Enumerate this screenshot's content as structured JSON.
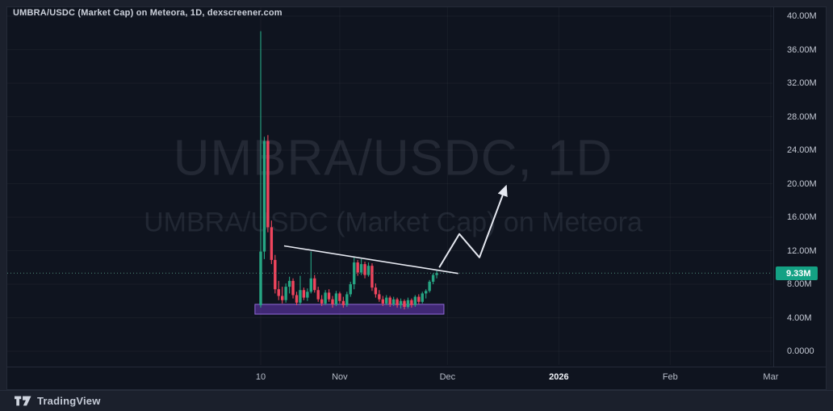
{
  "header": {
    "title": "UMBRA/USDC (Market Cap) on Meteora, 1D, dexscreener.com"
  },
  "watermark": {
    "line1": "UMBRA/USDC, 1D",
    "line2": "UMBRA/USDC (Market Cap) on Meteora"
  },
  "footer": {
    "brand": "TradingView"
  },
  "price_scale": {
    "last_price_label": "9.33M",
    "ticks": [
      {
        "label": "40.00M",
        "value": 40
      },
      {
        "label": "36.00M",
        "value": 36
      },
      {
        "label": "32.00M",
        "value": 32
      },
      {
        "label": "28.00M",
        "value": 28
      },
      {
        "label": "24.00M",
        "value": 24
      },
      {
        "label": "20.00M",
        "value": 20
      },
      {
        "label": "16.00M",
        "value": 16
      },
      {
        "label": "12.00M",
        "value": 12
      },
      {
        "label": "8.00M",
        "value": 8
      },
      {
        "label": "4.00M",
        "value": 4
      },
      {
        "label": "0.0000",
        "value": 0
      }
    ]
  },
  "time_scale": {
    "ticks": [
      {
        "label": "10",
        "day": 0,
        "strong": false
      },
      {
        "label": "Nov",
        "day": 22,
        "strong": false
      },
      {
        "label": "Dec",
        "day": 52,
        "strong": false
      },
      {
        "label": "2026",
        "day": 83,
        "strong": true
      },
      {
        "label": "Feb",
        "day": 114,
        "strong": false
      },
      {
        "label": "Mar",
        "day": 142,
        "strong": false
      }
    ]
  },
  "chart_data": {
    "type": "candlestick",
    "symbol": "UMBRA/USDC",
    "interval": "1D",
    "title": "UMBRA/USDC (Market Cap) on Meteora, 1D, dexscreener.com",
    "y_unit": "market cap (millions USD)",
    "y_range": [
      0,
      40
    ],
    "grid": "faint",
    "first_visible_tick": "10 (October)",
    "last_price": 9.33,
    "candles_ohlc_millions": [
      [
        5.5,
        38.2,
        5.2,
        11.9
      ],
      [
        11.9,
        25.6,
        11.0,
        25.1
      ],
      [
        25.1,
        25.8,
        14.2,
        14.8
      ],
      [
        14.8,
        15.6,
        10.4,
        10.9
      ],
      [
        10.9,
        11.5,
        6.9,
        7.4
      ],
      [
        7.4,
        8.4,
        6.1,
        6.6
      ],
      [
        6.6,
        7.7,
        5.7,
        6.1
      ],
      [
        6.1,
        8.1,
        5.8,
        7.7
      ],
      [
        7.7,
        8.9,
        6.9,
        8.4
      ],
      [
        8.4,
        8.7,
        6.3,
        6.7
      ],
      [
        6.7,
        7.1,
        5.5,
        5.8
      ],
      [
        5.8,
        9.0,
        5.5,
        7.3
      ],
      [
        7.3,
        7.6,
        6.1,
        6.4
      ],
      [
        6.4,
        7.5,
        6.0,
        7.1
      ],
      [
        7.1,
        11.9,
        6.9,
        8.7
      ],
      [
        8.7,
        9.1,
        7.0,
        7.3
      ],
      [
        7.3,
        7.7,
        5.9,
        6.2
      ],
      [
        6.2,
        6.7,
        5.4,
        5.7
      ],
      [
        5.7,
        7.3,
        5.5,
        7.0
      ],
      [
        7.0,
        7.4,
        5.9,
        6.2
      ],
      [
        6.2,
        6.6,
        5.2,
        5.6
      ],
      [
        5.6,
        7.2,
        5.4,
        6.9
      ],
      [
        6.9,
        7.1,
        5.7,
        6.0
      ],
      [
        6.0,
        6.5,
        5.2,
        5.5
      ],
      [
        5.5,
        7.1,
        5.3,
        6.8
      ],
      [
        6.8,
        8.3,
        6.5,
        8.0
      ],
      [
        8.0,
        11.2,
        7.4,
        10.6
      ],
      [
        10.6,
        10.9,
        9.0,
        9.4
      ],
      [
        9.4,
        11.0,
        9.1,
        10.4
      ],
      [
        10.4,
        10.7,
        8.7,
        9.1
      ],
      [
        9.1,
        10.6,
        8.9,
        10.2
      ],
      [
        10.2,
        10.5,
        7.2,
        7.6
      ],
      [
        7.6,
        8.1,
        6.4,
        6.8
      ],
      [
        6.8,
        7.3,
        5.9,
        6.2
      ],
      [
        6.2,
        6.6,
        5.4,
        5.7
      ],
      [
        5.7,
        6.7,
        5.5,
        6.4
      ],
      [
        6.4,
        6.6,
        5.3,
        5.6
      ],
      [
        5.6,
        6.5,
        5.4,
        6.2
      ],
      [
        6.2,
        6.4,
        5.2,
        5.5
      ],
      [
        5.5,
        6.3,
        5.1,
        6.0
      ],
      [
        6.0,
        6.2,
        5.0,
        5.3
      ],
      [
        5.3,
        6.4,
        5.1,
        6.1
      ],
      [
        6.1,
        6.3,
        5.2,
        5.5
      ],
      [
        5.5,
        6.7,
        5.3,
        6.5
      ],
      [
        6.5,
        6.8,
        5.6,
        5.9
      ],
      [
        5.9,
        7.1,
        5.7,
        6.9
      ],
      [
        6.9,
        7.4,
        6.3,
        7.2
      ],
      [
        7.2,
        8.5,
        7.0,
        8.3
      ],
      [
        8.3,
        9.3,
        8.0,
        9.1
      ],
      [
        9.1,
        9.6,
        8.7,
        9.33
      ]
    ],
    "drawings": {
      "support_zone": {
        "from_day": -1.6,
        "to_day": 51.0,
        "top_value": 5.6,
        "bottom_value": 4.43
      },
      "descending_trendline": {
        "points_day_value": [
          [
            6.5,
            12.58
          ],
          [
            55.0,
            9.28
          ]
        ]
      },
      "projection_arrow": {
        "points_day_value": [
          [
            49.7,
            10.0
          ],
          [
            55.3,
            14.0
          ],
          [
            60.9,
            11.2
          ],
          [
            68.3,
            19.7
          ]
        ]
      }
    }
  },
  "colors": {
    "up": "#26a583",
    "down": "#ef455d",
    "badge_bg": "#14a184",
    "zone_fill": "rgba(106,57,185,0.55)",
    "zone_border": "#9168d8",
    "drawing_line": "#e6e9f1",
    "last_price_line": "#4d8a7c",
    "grid": "rgba(255,255,255,0.04)"
  }
}
